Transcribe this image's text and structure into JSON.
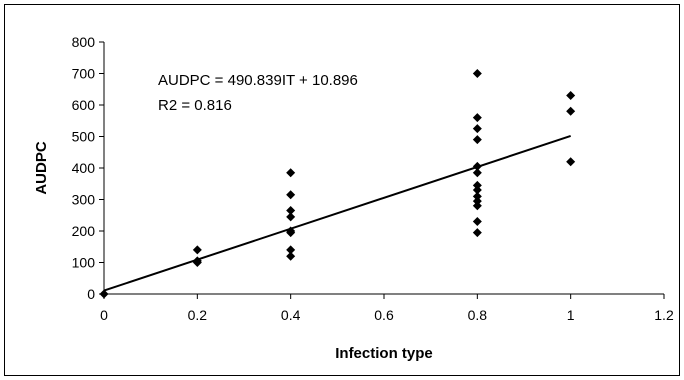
{
  "chart_data": {
    "type": "scatter",
    "title": "",
    "xlabel": "Infection type",
    "ylabel": "AUDPC",
    "xlim": [
      0,
      1.2
    ],
    "ylim": [
      0,
      800
    ],
    "xticks": [
      "0",
      "0.2",
      "0.4",
      "0.6",
      "0.8",
      "1",
      "1.2"
    ],
    "yticks": [
      "0",
      "100",
      "200",
      "300",
      "400",
      "500",
      "600",
      "700",
      "800"
    ],
    "grid": false,
    "legend": "none",
    "marker_color": "#000000",
    "series": [
      {
        "marker": "diamond",
        "points": [
          {
            "x": 0,
            "y": 0
          },
          {
            "x": 0.2,
            "y": 140
          },
          {
            "x": 0.2,
            "y": 105
          },
          {
            "x": 0.2,
            "y": 100
          },
          {
            "x": 0.4,
            "y": 385
          },
          {
            "x": 0.4,
            "y": 315
          },
          {
            "x": 0.4,
            "y": 265
          },
          {
            "x": 0.4,
            "y": 245
          },
          {
            "x": 0.4,
            "y": 200
          },
          {
            "x": 0.4,
            "y": 195
          },
          {
            "x": 0.4,
            "y": 140
          },
          {
            "x": 0.4,
            "y": 120
          },
          {
            "x": 0.8,
            "y": 700
          },
          {
            "x": 0.8,
            "y": 560
          },
          {
            "x": 0.8,
            "y": 525
          },
          {
            "x": 0.8,
            "y": 490
          },
          {
            "x": 0.8,
            "y": 405
          },
          {
            "x": 0.8,
            "y": 385
          },
          {
            "x": 0.8,
            "y": 345
          },
          {
            "x": 0.8,
            "y": 330
          },
          {
            "x": 0.8,
            "y": 310
          },
          {
            "x": 0.8,
            "y": 295
          },
          {
            "x": 0.8,
            "y": 280
          },
          {
            "x": 0.8,
            "y": 230
          },
          {
            "x": 0.8,
            "y": 195
          },
          {
            "x": 1,
            "y": 630
          },
          {
            "x": 1,
            "y": 580
          },
          {
            "x": 1,
            "y": 420
          }
        ]
      }
    ],
    "trendline": {
      "type": "linear",
      "from": [
        0,
        10.896
      ],
      "to": [
        1,
        501.735
      ]
    },
    "annotations": [
      "AUDPC = 490.839IT + 10.896",
      "R2 = 0.816"
    ]
  }
}
